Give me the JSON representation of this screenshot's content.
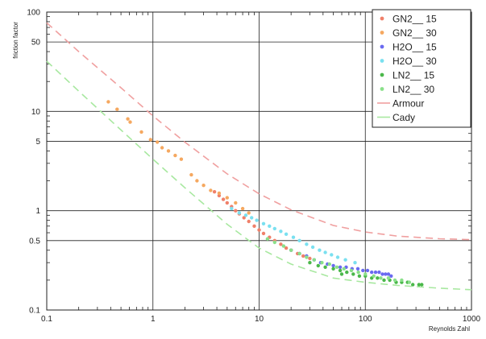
{
  "chart_data": {
    "type": "scatter",
    "title": "",
    "xlabel": "Reynolds Zahl",
    "ylabel": "friction factor",
    "xscale": "log",
    "yscale": "log",
    "xlim": [
      0.1,
      1000
    ],
    "ylim": [
      0.1,
      100
    ],
    "x_ticks": [
      "0.1",
      "1",
      "10",
      "100",
      "1000"
    ],
    "y_ticks": [
      "0.1",
      "0.5",
      "1",
      "5",
      "10",
      "50",
      "100"
    ],
    "grid": true,
    "legend_position": "top-right",
    "series": [
      {
        "name": "GN2__ 15",
        "kind": "points",
        "color": "#f0806a",
        "x": [
          3.8,
          4.2,
          4.6,
          5.0,
          5.5,
          6.0,
          6.5,
          7.2,
          8.0,
          9.0,
          10,
          11,
          12.5,
          14,
          16,
          18,
          20,
          23,
          26,
          30
        ],
        "y": [
          1.55,
          1.42,
          1.3,
          1.2,
          1.1,
          1.0,
          0.93,
          0.85,
          0.78,
          0.7,
          0.64,
          0.59,
          0.54,
          0.5,
          0.46,
          0.42,
          0.4,
          0.37,
          0.35,
          0.33
        ]
      },
      {
        "name": "GN2__ 30",
        "kind": "points",
        "color": "#f5a860",
        "x": [
          0.38,
          0.46,
          0.58,
          0.61,
          0.78,
          0.95,
          1.1,
          1.22,
          1.4,
          1.62,
          1.85,
          2.3,
          2.6,
          3.0,
          3.5,
          4.2,
          5.0,
          6.0,
          7.0,
          8.0
        ],
        "y": [
          12.5,
          10.5,
          8.4,
          7.8,
          6.2,
          5.2,
          4.9,
          4.3,
          4.0,
          3.6,
          3.3,
          2.3,
          2.0,
          1.8,
          1.6,
          1.5,
          1.35,
          1.2,
          1.05,
          0.95
        ]
      },
      {
        "name": "H2O__ 15",
        "kind": "points",
        "color": "#6a6af0",
        "x": [
          20,
          24,
          28,
          33,
          38,
          44,
          50,
          58,
          66,
          75,
          85,
          95,
          105,
          115,
          125,
          135,
          145,
          155,
          165,
          175
        ],
        "y": [
          0.4,
          0.37,
          0.35,
          0.32,
          0.3,
          0.29,
          0.28,
          0.27,
          0.27,
          0.26,
          0.26,
          0.25,
          0.25,
          0.24,
          0.24,
          0.24,
          0.23,
          0.23,
          0.23,
          0.22
        ]
      },
      {
        "name": "H2O__ 30",
        "kind": "points",
        "color": "#7ae0f0",
        "x": [
          5.5,
          6.5,
          7.5,
          8.5,
          9.5,
          11,
          12.5,
          14,
          16,
          18,
          21,
          24,
          28,
          32,
          37,
          42,
          48,
          55,
          65,
          80
        ],
        "y": [
          1.05,
          0.95,
          0.9,
          0.85,
          0.8,
          0.74,
          0.7,
          0.66,
          0.62,
          0.58,
          0.54,
          0.5,
          0.46,
          0.43,
          0.4,
          0.38,
          0.36,
          0.34,
          0.32,
          0.3
        ]
      },
      {
        "name": "LN2__ 15",
        "kind": "points",
        "color": "#4ab84a",
        "x": [
          30,
          36,
          42,
          50,
          58,
          67,
          77,
          88,
          100,
          115,
          130,
          150,
          170,
          195,
          220,
          250,
          280,
          320,
          340,
          60
        ],
        "y": [
          0.3,
          0.28,
          0.27,
          0.26,
          0.25,
          0.24,
          0.23,
          0.22,
          0.22,
          0.21,
          0.21,
          0.2,
          0.2,
          0.19,
          0.19,
          0.19,
          0.18,
          0.18,
          0.18,
          0.23
        ]
      },
      {
        "name": "LN2__ 30",
        "kind": "points",
        "color": "#8ae08a",
        "x": [
          12,
          14,
          17,
          20,
          24,
          28,
          33,
          39,
          46,
          54,
          63,
          74,
          86,
          100,
          120,
          140,
          165,
          190,
          220,
          260
        ],
        "y": [
          0.52,
          0.48,
          0.44,
          0.4,
          0.37,
          0.34,
          0.32,
          0.3,
          0.29,
          0.27,
          0.26,
          0.25,
          0.24,
          0.23,
          0.22,
          0.21,
          0.21,
          0.2,
          0.2,
          0.19
        ]
      },
      {
        "name": "Armour",
        "kind": "dashed-line",
        "color": "#f0a0a0",
        "x": [
          0.1,
          0.2,
          0.5,
          1,
          2,
          5,
          10,
          20,
          50,
          100,
          200,
          500,
          1000
        ],
        "y": [
          78,
          40,
          17.3,
          9.0,
          4.9,
          2.35,
          1.48,
          1.02,
          0.71,
          0.61,
          0.555,
          0.522,
          0.511
        ]
      },
      {
        "name": "Cady",
        "kind": "dashed-line",
        "color": "#a8e8a0",
        "x": [
          0.1,
          0.2,
          0.5,
          1,
          2,
          5,
          10,
          20,
          50,
          100,
          200,
          500,
          1000
        ],
        "y": [
          32,
          16,
          6.5,
          3.3,
          1.7,
          0.73,
          0.42,
          0.29,
          0.21,
          0.19,
          0.177,
          0.166,
          0.16
        ]
      }
    ]
  }
}
